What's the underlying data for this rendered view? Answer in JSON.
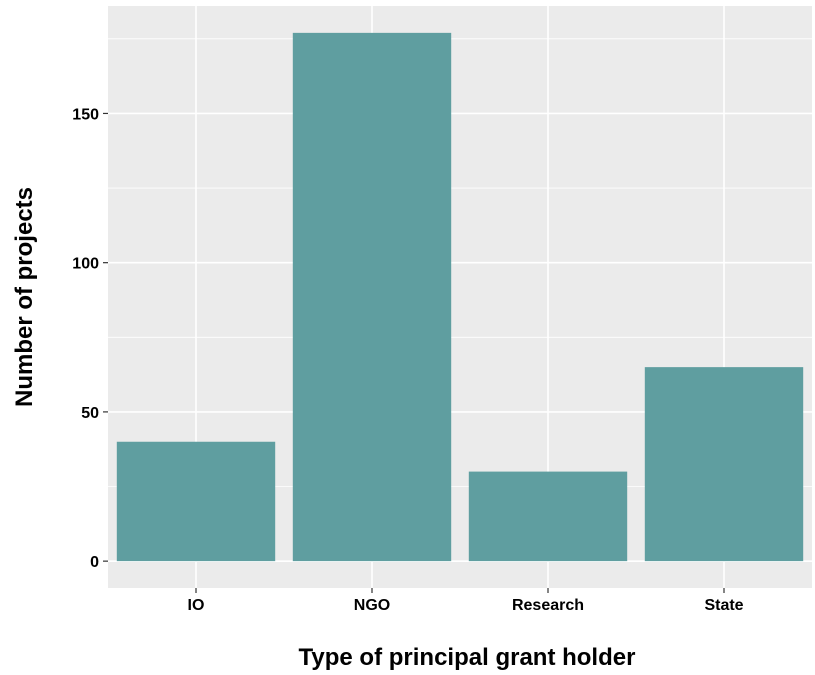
{
  "chart_data": {
    "type": "bar",
    "title": "",
    "xlabel": "Type of principal grant holder",
    "ylabel": "Number of projects",
    "categories": [
      "IO",
      "NGO",
      "Research",
      "State"
    ],
    "values": [
      40,
      177,
      30,
      65
    ],
    "ylim": [
      -9,
      186
    ],
    "yticks": [
      0,
      50,
      100,
      150
    ],
    "ytick_labels": [
      "0",
      "50",
      "100",
      "150"
    ],
    "grid": true,
    "legend": "none",
    "colors": {
      "bar": "#5f9ea0",
      "panel_background": "#ebebeb",
      "grid": "#ffffff",
      "text": "#000000"
    }
  }
}
